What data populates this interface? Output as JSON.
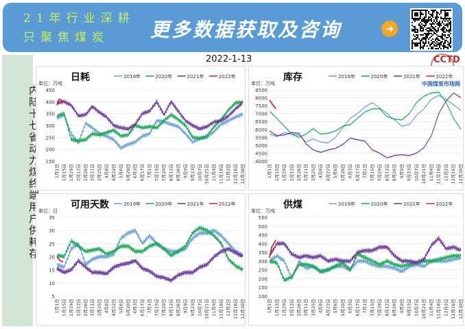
{
  "banner": {
    "slogan_line1": "21年行业深耕",
    "slogan_line2": "只聚焦煤炭",
    "promo": "更多数据获取及咨询",
    "arrow_icon": "arrow-right-circle-icon",
    "qr_icon": "qr-code-icon"
  },
  "sidebar": {
    "title": "内陆十七省动力煤终端用户供耗存"
  },
  "date": "2022-1-13",
  "logo": {
    "text": "CCTD",
    "sub": "中国煤炭市场网"
  },
  "colors": {
    "2019年": "#6fa3d8",
    "2020年": "#1faa5a",
    "2021年": "#6b3d9e",
    "2022年": "#e0262b"
  },
  "chart_data": [
    {
      "type": "line",
      "title": "日耗",
      "unit": "单位：万吨",
      "ylim": [
        150,
        450
      ],
      "yticks": [
        150,
        200,
        250,
        300,
        350,
        400,
        450
      ],
      "grid": true,
      "legend": "top",
      "xticks": [
        "1月1日",
        "1月15日",
        "1月29日",
        "2月12日",
        "2月26日",
        "3月11日",
        "3月25日",
        "4月8日",
        "4月22日",
        "5月6日",
        "5月20日",
        "6月3日",
        "6月17日",
        "7月1日",
        "7月15日",
        "7月29日",
        "8月12日",
        "8月26日",
        "9月9日",
        "9月23日",
        "10月7日",
        "10月21日",
        "11月4日",
        "11月18日",
        "12月2日",
        "12月16日",
        "12月30日"
      ],
      "series": [
        {
          "name": "2019年",
          "values": [
            330,
            345,
            265,
            225,
            310,
            290,
            265,
            255,
            240,
            205,
            220,
            230,
            255,
            265,
            320,
            315,
            305,
            295,
            265,
            230,
            245,
            250,
            275,
            305,
            320,
            335,
            348
          ]
        },
        {
          "name": "2020年",
          "values": [
            340,
            350,
            240,
            235,
            240,
            265,
            260,
            270,
            280,
            255,
            260,
            300,
            290,
            295,
            290,
            320,
            345,
            325,
            300,
            250,
            245,
            255,
            295,
            325,
            365,
            395,
            398
          ]
        },
        {
          "name": "2021年",
          "values": [
            395,
            400,
            385,
            340,
            345,
            380,
            355,
            335,
            300,
            290,
            285,
            305,
            350,
            360,
            400,
            345,
            400,
            360,
            320,
            300,
            285,
            295,
            315,
            320,
            340,
            370,
            395
          ]
        },
        {
          "name": "2022年",
          "x": [
            "1月1日",
            "1月5日",
            "1月9日",
            "1月13日"
          ],
          "values": [
            385,
            410,
            408,
            400
          ]
        }
      ]
    },
    {
      "type": "line",
      "title": "库存",
      "unit": "单位：万吨",
      "ylim": [
        4000,
        8500
      ],
      "yticks": [
        4000,
        4500,
        5000,
        5500,
        6000,
        6500,
        7000,
        7500,
        8000,
        8500
      ],
      "grid": true,
      "legend": "top",
      "xticks": [
        "1月1日",
        "1月15日",
        "1月29日",
        "2月12日",
        "2月26日",
        "3月11日",
        "3月25日",
        "4月8日",
        "4月22日",
        "5月6日",
        "5月20日",
        "6月3日",
        "6月17日",
        "7月1日",
        "7月15日",
        "7月29日",
        "8月12日",
        "8月26日",
        "9月9日",
        "9月23日",
        "10月7日",
        "10月21日",
        "11月4日",
        "11月18日",
        "12月2日",
        "12月16日",
        "12月30日"
      ],
      "series": [
        {
          "name": "2019年",
          "values": [
            5700,
            5550,
            5800,
            5700,
            5650,
            5200,
            5400,
            5200,
            5150,
            5500,
            6100,
            6700,
            7000,
            7400,
            7700,
            7350,
            7000,
            6600,
            6200,
            6300,
            6900,
            7300,
            7900,
            8150,
            7900,
            7550,
            7200
          ]
        },
        {
          "name": "2020年",
          "values": [
            7150,
            6700,
            6200,
            5700,
            5500,
            5700,
            6050,
            5700,
            5750,
            5900,
            6200,
            6300,
            6700,
            7100,
            7300,
            7300,
            6800,
            6650,
            6600,
            7000,
            7700,
            8100,
            8300,
            8350,
            7700,
            6700,
            6000
          ]
        },
        {
          "name": "2021年",
          "values": [
            5900,
            5600,
            5650,
            5800,
            5750,
            5100,
            4700,
            4550,
            4700,
            4800,
            5050,
            5450,
            5350,
            5250,
            4700,
            4500,
            4200,
            4350,
            4400,
            4350,
            4500,
            4850,
            5600,
            7000,
            7800,
            8300,
            8000
          ]
        },
        {
          "name": "2022年",
          "x": [
            "1月1日",
            "1月7日",
            "1月13日"
          ],
          "values": [
            7850,
            7550,
            7300
          ]
        }
      ]
    },
    {
      "type": "line",
      "title": "可用天数",
      "unit": "单位：日",
      "ylim": [
        5,
        35
      ],
      "yticks": [
        5,
        10,
        15,
        20,
        25,
        30,
        35
      ],
      "grid": true,
      "legend": "top",
      "xticks": [
        "1月1日",
        "1月15日",
        "1月29日",
        "2月12日",
        "2月26日",
        "3月11日",
        "3月25日",
        "4月8日",
        "4月22日",
        "5月6日",
        "5月20日",
        "6月3日",
        "6月17日",
        "7月1日",
        "7月15日",
        "7月29日",
        "8月12日",
        "8月26日",
        "9月9日",
        "9月23日",
        "10月7日",
        "10月21日",
        "11月4日",
        "11月18日",
        "12月2日",
        "12月16日",
        "12月30日"
      ],
      "series": [
        {
          "name": "2019年",
          "values": [
            17,
            16,
            23,
            25,
            17,
            19,
            20,
            20,
            21,
            27,
            29,
            30,
            25,
            28,
            25,
            23,
            22,
            22,
            23,
            27,
            29,
            29,
            30,
            28,
            25,
            22,
            20.5
          ]
        },
        {
          "name": "2020年",
          "values": [
            20.5,
            20,
            26,
            24,
            22,
            22.5,
            23,
            21,
            22,
            24,
            24,
            22,
            22,
            24,
            25,
            23,
            20.5,
            22,
            24,
            29,
            31,
            30,
            28,
            25,
            19,
            16.5,
            15
          ]
        },
        {
          "name": "2021年",
          "values": [
            15.5,
            14,
            15,
            18.5,
            16,
            14,
            14,
            13.5,
            16,
            17,
            17.5,
            18.5,
            15.5,
            14.5,
            12.5,
            12,
            11,
            13,
            14,
            14,
            16,
            17,
            20,
            22,
            23,
            21.5,
            20
          ]
        },
        {
          "name": "2022年",
          "x": [
            "1月1日",
            "1月7日",
            "1月13日"
          ],
          "values": [
            20,
            18.5,
            18
          ]
        }
      ]
    },
    {
      "type": "line",
      "title": "供煤",
      "unit": "单位：万吨",
      "ylim": [
        100,
        550
      ],
      "yticks": [
        100,
        150,
        200,
        250,
        300,
        350,
        400,
        450,
        500,
        550
      ],
      "grid": true,
      "legend": "top",
      "xticks": [
        "1月1日",
        "1月15日",
        "1月29日",
        "2月12日",
        "2月26日",
        "3月11日",
        "3月25日",
        "4月8日",
        "4月22日",
        "5月6日",
        "5月20日",
        "6月3日",
        "6月17日",
        "7月1日",
        "7月15日",
        "7月29日",
        "8月12日",
        "8月26日",
        "9月9日",
        "9月23日",
        "10月7日",
        "10月21日",
        "11月4日",
        "11月18日",
        "12月2日",
        "12月16日",
        "12月30日"
      ],
      "series": [
        {
          "name": "2019年",
          "values": [
            300,
            330,
            300,
            200,
            300,
            260,
            270,
            240,
            250,
            270,
            270,
            250,
            300,
            300,
            280,
            270,
            270,
            260,
            240,
            270,
            280,
            270,
            300,
            300,
            300,
            310,
            320
          ]
        },
        {
          "name": "2020年",
          "values": [
            300,
            290,
            190,
            210,
            280,
            280,
            270,
            240,
            250,
            270,
            290,
            250,
            340,
            320,
            300,
            280,
            300,
            280,
            270,
            280,
            290,
            300,
            300,
            310,
            320,
            330,
            330
          ]
        },
        {
          "name": "2021年",
          "values": [
            330,
            400,
            400,
            340,
            320,
            330,
            320,
            330,
            300,
            310,
            300,
            300,
            350,
            360,
            360,
            380,
            380,
            330,
            300,
            300,
            290,
            310,
            390,
            430,
            370,
            380,
            360
          ]
        },
        {
          "name": "2022年",
          "x": [
            "1月1日",
            "1月5日",
            "1月9日",
            "1月13日"
          ],
          "values": [
            320,
            380,
            400,
            420
          ]
        }
      ]
    }
  ]
}
